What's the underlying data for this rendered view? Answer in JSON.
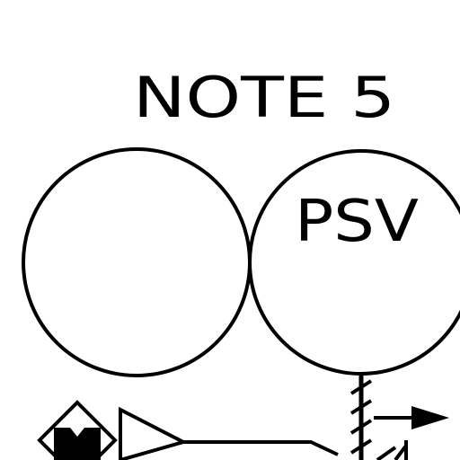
{
  "drawing": {
    "note_label": "NOTE 5",
    "left_bubble_text": "",
    "right_bubble_text": "PSV",
    "line_color": "#000000",
    "background_color": "#ffffff"
  }
}
